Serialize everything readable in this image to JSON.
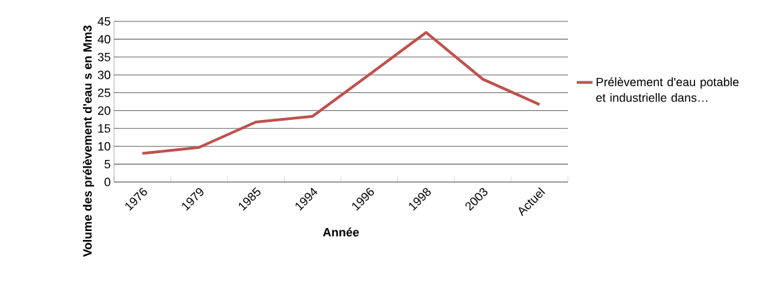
{
  "chart_data": {
    "type": "line",
    "xlabel": "Année",
    "ylabel": "Volume des prélèvement d'eau s en Mm3",
    "categories": [
      "1976",
      "1979",
      "1985",
      "1994",
      "1996",
      "1998",
      "2003",
      "Actuel"
    ],
    "series": [
      {
        "name": "Prélèvement d'eau potable et industrielle dans…",
        "color": "#c0504d",
        "values": [
          8.0,
          9.7,
          16.8,
          18.4,
          30.1,
          41.9,
          28.8,
          21.7
        ]
      }
    ],
    "ylim": [
      0,
      45
    ],
    "yticks": [
      0,
      5,
      10,
      15,
      20,
      25,
      30,
      35,
      40,
      45
    ],
    "grid": "y",
    "legend": "right",
    "marker": "none",
    "line_style": "solid"
  }
}
